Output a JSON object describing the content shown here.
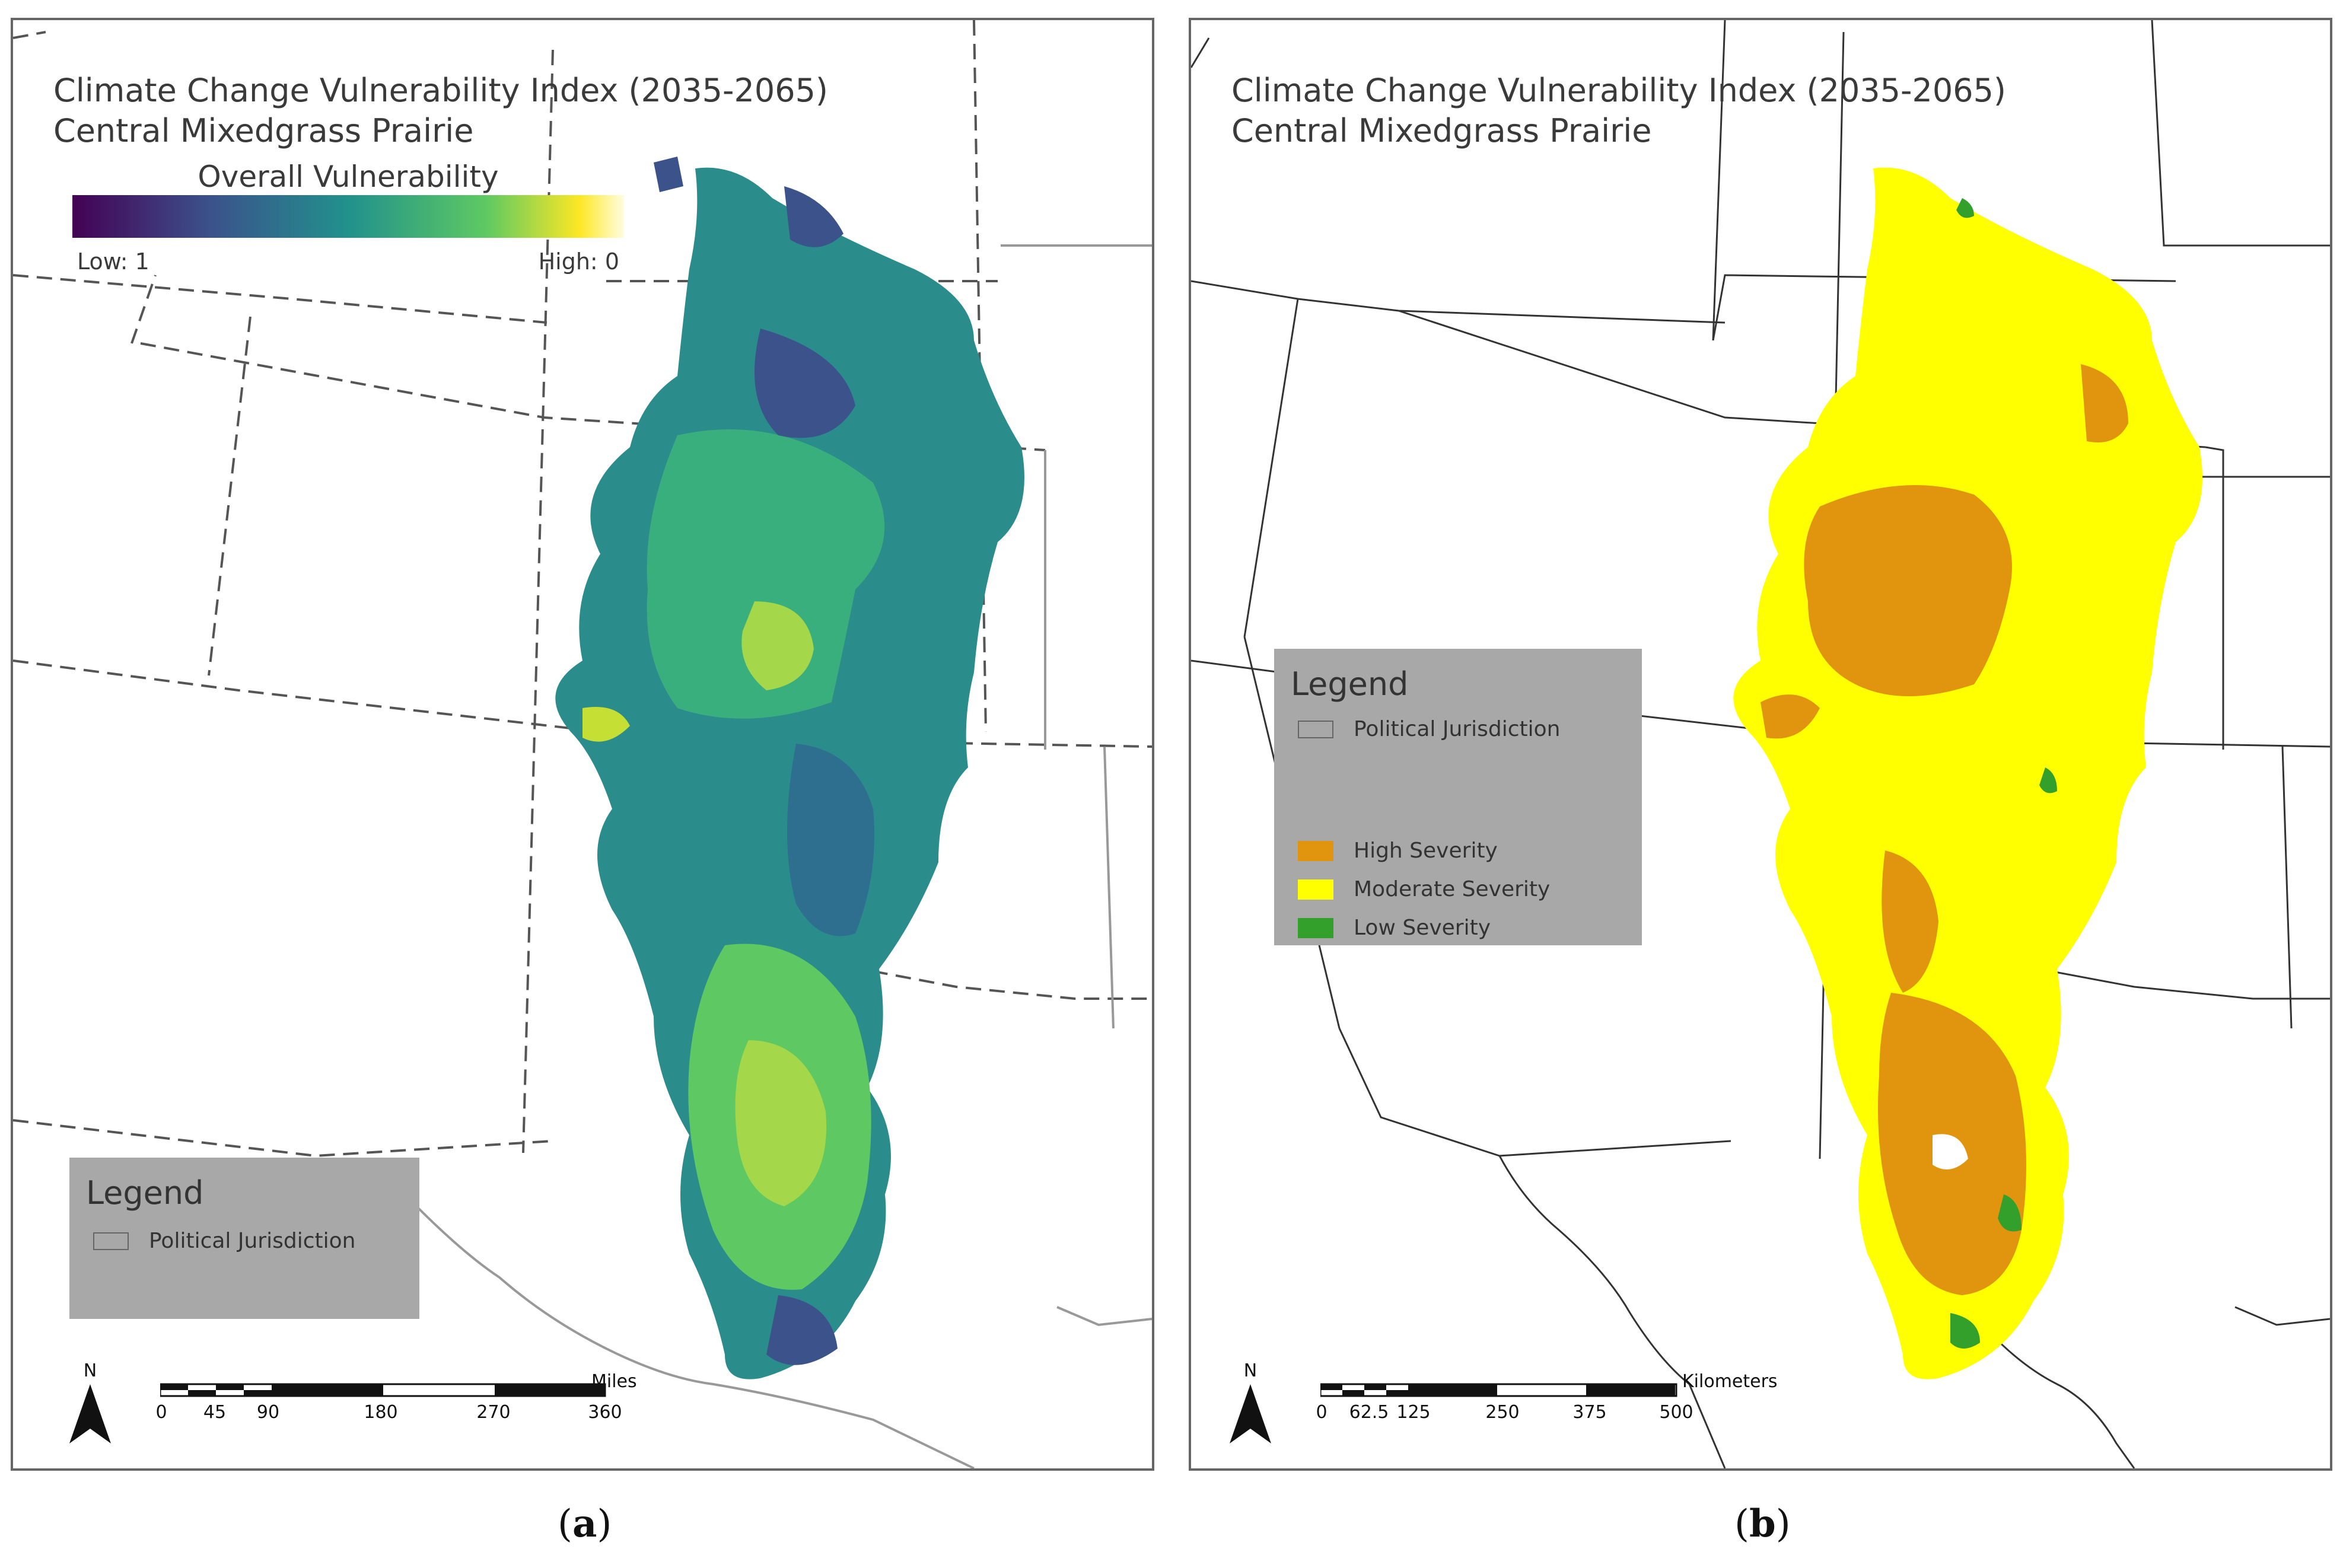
{
  "panels": [
    {
      "title_line1": "Climate Change Vulnerability Index (2035-2065)",
      "title_line2": "Central Mixedgrass Prairie",
      "colorbar": {
        "title": "Overall Vulnerability",
        "low_label": "Low: 1",
        "high_label": "High: 0",
        "colors": [
          "#440154",
          "#3b528b",
          "#21918c",
          "#5ec962",
          "#fde725",
          "#fffde0"
        ]
      },
      "legend": {
        "title": "Legend",
        "items": [
          {
            "label": "Political Jurisdiction",
            "symbol": "outline"
          }
        ]
      },
      "north_label": "N",
      "scale_bar": {
        "unit": "Miles",
        "ticks": [
          "0",
          "45",
          "90",
          "180",
          "270",
          "360"
        ]
      },
      "caption_letter": "a"
    },
    {
      "title_line1": "Climate Change Vulnerability Index (2035-2065)",
      "title_line2": "Central Mixedgrass Prairie",
      "legend": {
        "title": "Legend",
        "items": [
          {
            "label": "Political Jurisdiction",
            "symbol": "outline"
          },
          {
            "label": "High Severity",
            "symbol": "fill",
            "color": "#e1950e"
          },
          {
            "label": "Moderate Severity",
            "symbol": "fill",
            "color": "#ffff00"
          },
          {
            "label": "Low Severity",
            "symbol": "fill",
            "color": "#33a02c"
          }
        ]
      },
      "north_label": "N",
      "scale_bar": {
        "unit": "Kilometers",
        "ticks": [
          "0",
          "62.5",
          "125",
          "250",
          "375",
          "500"
        ]
      },
      "caption_letter": "b"
    }
  ]
}
